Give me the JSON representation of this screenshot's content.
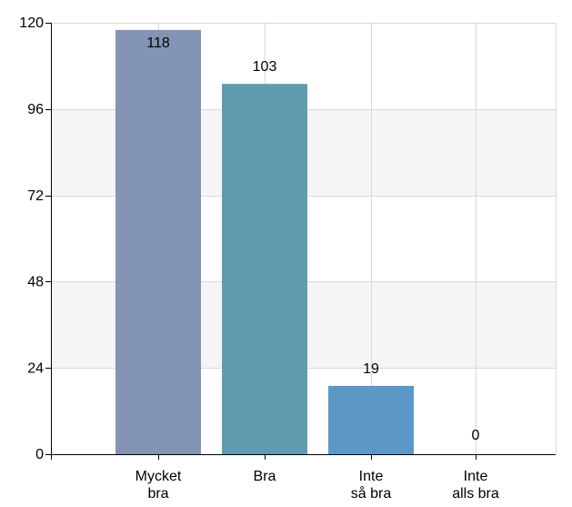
{
  "chart_data": {
    "type": "bar",
    "title": "",
    "xlabel": "",
    "ylabel": "",
    "categories": [
      [
        "Mycket",
        "bra"
      ],
      [
        "Bra"
      ],
      [
        "Inte",
        "så bra"
      ],
      [
        "Inte",
        "alls bra"
      ]
    ],
    "values": [
      118,
      103,
      19,
      0
    ],
    "value_labels": [
      "118",
      "103",
      "19",
      "0"
    ],
    "ylim": [
      0,
      120
    ],
    "yticks": [
      0,
      24,
      48,
      72,
      96,
      120
    ],
    "ytick_labels": [
      "0",
      "24",
      "48",
      "72",
      "96",
      "120"
    ],
    "grid": true,
    "alternating_bands": true,
    "legend": "none",
    "colors": [
      "#8394b4",
      "#619bb0",
      "#5b98c8",
      "#5b98c8"
    ],
    "band_color": "#f5f5f5",
    "grid_color": "#d9d9d9",
    "axis_color": "#000000"
  }
}
